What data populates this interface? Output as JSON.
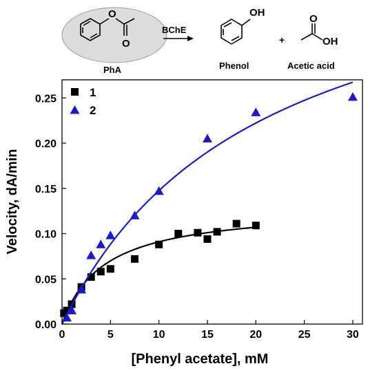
{
  "scheme": {
    "reactant_label": "PhA",
    "arrow_label": "BChE",
    "product1_label": "Phenol",
    "plus": "+",
    "product2_label": "Acetic acid",
    "phenol_oh": "OH",
    "ester_o": "O",
    "acid_o": "O",
    "acid_oh": "OH"
  },
  "chart_data": {
    "type": "scatter",
    "xlabel": "[Phenyl acetate], mM",
    "ylabel": "Velocity, dA/min",
    "xlim": [
      0,
      31
    ],
    "ylim": [
      0,
      0.27
    ],
    "xticks": [
      0,
      5,
      10,
      15,
      20,
      25,
      30
    ],
    "yticks": [
      0.0,
      0.05,
      0.1,
      0.15,
      0.2,
      0.25
    ],
    "ytick_labels": [
      "0.00",
      "0.05",
      "0.10",
      "0.15",
      "0.20",
      "0.25"
    ],
    "legend_position": "top-left",
    "series": [
      {
        "name": "1",
        "marker": "square",
        "color": "#000000",
        "fit_color": "#000000",
        "x": [
          0.2,
          0.5,
          1,
          2,
          3,
          4,
          5,
          7.5,
          10,
          12,
          14,
          15,
          16,
          18,
          20
        ],
        "y": [
          0.012,
          0.015,
          0.022,
          0.041,
          0.052,
          0.058,
          0.061,
          0.072,
          0.088,
          0.1,
          0.101,
          0.094,
          0.102,
          0.111,
          0.109
        ],
        "fit": {
          "x_range": [
            0,
            20
          ],
          "vmax": 0.13,
          "km": 4.3
        }
      },
      {
        "name": "2",
        "marker": "triangle",
        "color": "#1a1acc",
        "fit_color": "#1a1acc",
        "x": [
          0.5,
          1,
          2,
          3,
          4,
          5,
          7.5,
          10,
          15,
          20,
          30
        ],
        "y": [
          0.007,
          0.015,
          0.038,
          0.076,
          0.088,
          0.098,
          0.12,
          0.147,
          0.205,
          0.234,
          0.251
        ],
        "fit": {
          "x_range": [
            0,
            30
          ],
          "vmax": 0.45,
          "km": 20.5
        }
      }
    ]
  }
}
